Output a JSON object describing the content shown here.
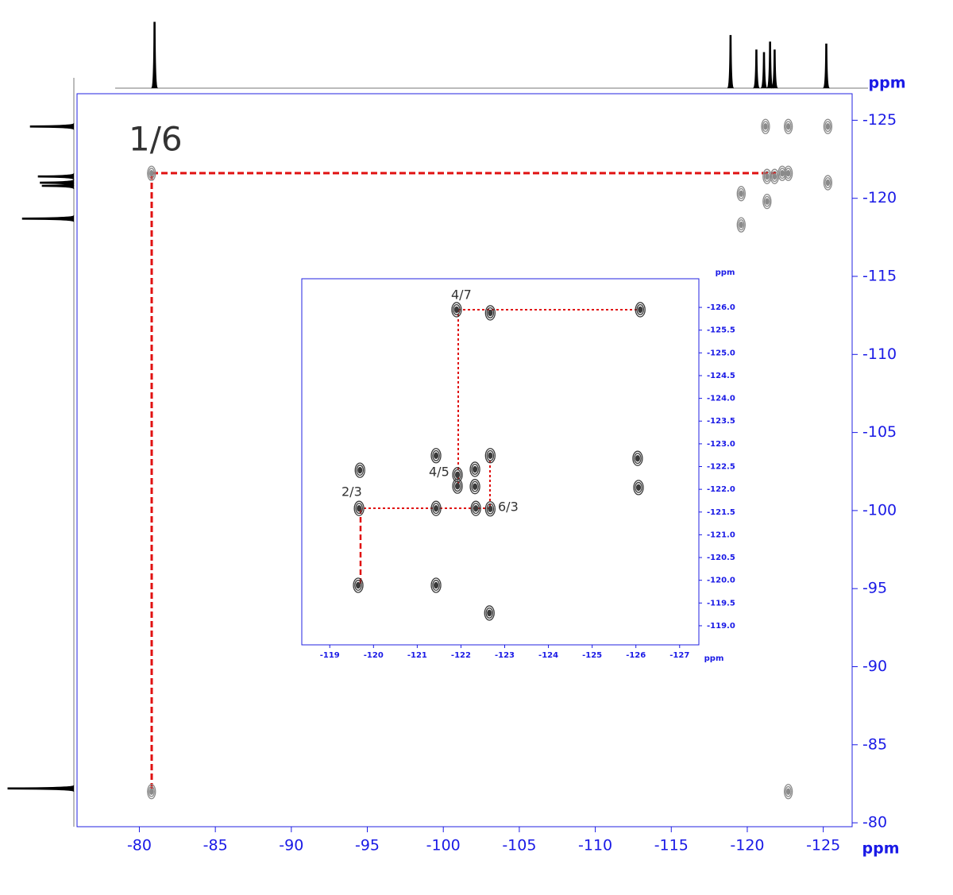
{
  "chart_data": [
    {
      "type": "contour",
      "annotations": [
        "1/6"
      ],
      "x_label": "ppm",
      "y_label": "ppm",
      "axis_color": "#1a1ae6",
      "color": "#8a8a8a",
      "xlim": [
        -75.9,
        -126.9
      ],
      "ylim": [
        -79.75,
        -126.7
      ],
      "xticks": [
        -80,
        -85,
        -90,
        -95,
        -100,
        -105,
        -110,
        -115,
        -120,
        -125
      ],
      "yticks": [
        -125,
        -120,
        -115,
        -110,
        -105,
        -100,
        -95,
        -90,
        -85,
        -80
      ],
      "x": [
        -80.8,
        -80.8,
        -122.7,
        -122.7,
        -119.6,
        -119.6,
        -121.3,
        -121.8,
        -122.3,
        -121.2,
        -122.7,
        -125.3,
        -125.3,
        -121.3
      ],
      "y": [
        -82.0,
        -121.6,
        -121.6,
        -82.0,
        -120.3,
        -118.3,
        -121.4,
        -121.4,
        -121.6,
        -124.6,
        -124.6,
        -124.6,
        -121.0,
        -119.8
      ],
      "projection_top": {
        "x": [
          -81.0,
          -118.9,
          -120.6,
          -121.1,
          -121.5,
          -121.8,
          -125.2
        ],
        "values": [
          100,
          80,
          58,
          54,
          70,
          58,
          67
        ]
      },
      "projection_left": {
        "y": [
          -124.6,
          -121.4,
          -121.0,
          -120.8,
          -118.7,
          -82.2
        ],
        "values": [
          66,
          54,
          51,
          48,
          78,
          100
        ]
      }
    },
    {
      "type": "contour",
      "annotations": [
        "4/7",
        "4/5",
        "2/3",
        "6/3"
      ],
      "x_label": "ppm",
      "y_label": "ppm",
      "axis_color": "#1a1ae6",
      "color": "#3a3a3a",
      "xlim": [
        -118.36,
        -127.44
      ],
      "ylim": [
        -118.58,
        -126.63
      ],
      "xticks": [
        -119,
        -120,
        -121,
        -122,
        -123,
        -124,
        -125,
        -126,
        -127
      ],
      "yticks": [
        {
          "value": -126,
          "label": "-126.0"
        },
        -125.5,
        {
          "value": -125,
          "label": "-125.0"
        },
        -124.5,
        {
          "value": -124,
          "label": "-124.0"
        },
        -123.5,
        {
          "value": -123,
          "label": "-123.0"
        },
        -122.5,
        {
          "value": -122,
          "label": "-122.0"
        },
        -121.5,
        {
          "value": -121,
          "label": "-121.0"
        },
        -120.5,
        {
          "value": -120,
          "label": "-120.0"
        },
        -119.5,
        {
          "value": -119,
          "label": "-119.0"
        }
      ],
      "x": [
        -119.67,
        -119.65,
        -119.69,
        -121.43,
        -121.43,
        -121.43,
        -121.9,
        -121.92,
        -121.92,
        -122.32,
        -122.32,
        -122.34,
        -122.67,
        -122.67,
        -122.67,
        -122.65,
        -126.1,
        -126.04,
        -126.06
      ],
      "y": [
        -121.58,
        -119.89,
        -122.42,
        -121.58,
        -119.89,
        -122.74,
        -125.95,
        -122.07,
        -122.32,
        -122.44,
        -122.06,
        -121.58,
        -122.74,
        -121.57,
        -125.88,
        -119.28,
        -125.95,
        -122.68,
        -122.04
      ]
    }
  ]
}
